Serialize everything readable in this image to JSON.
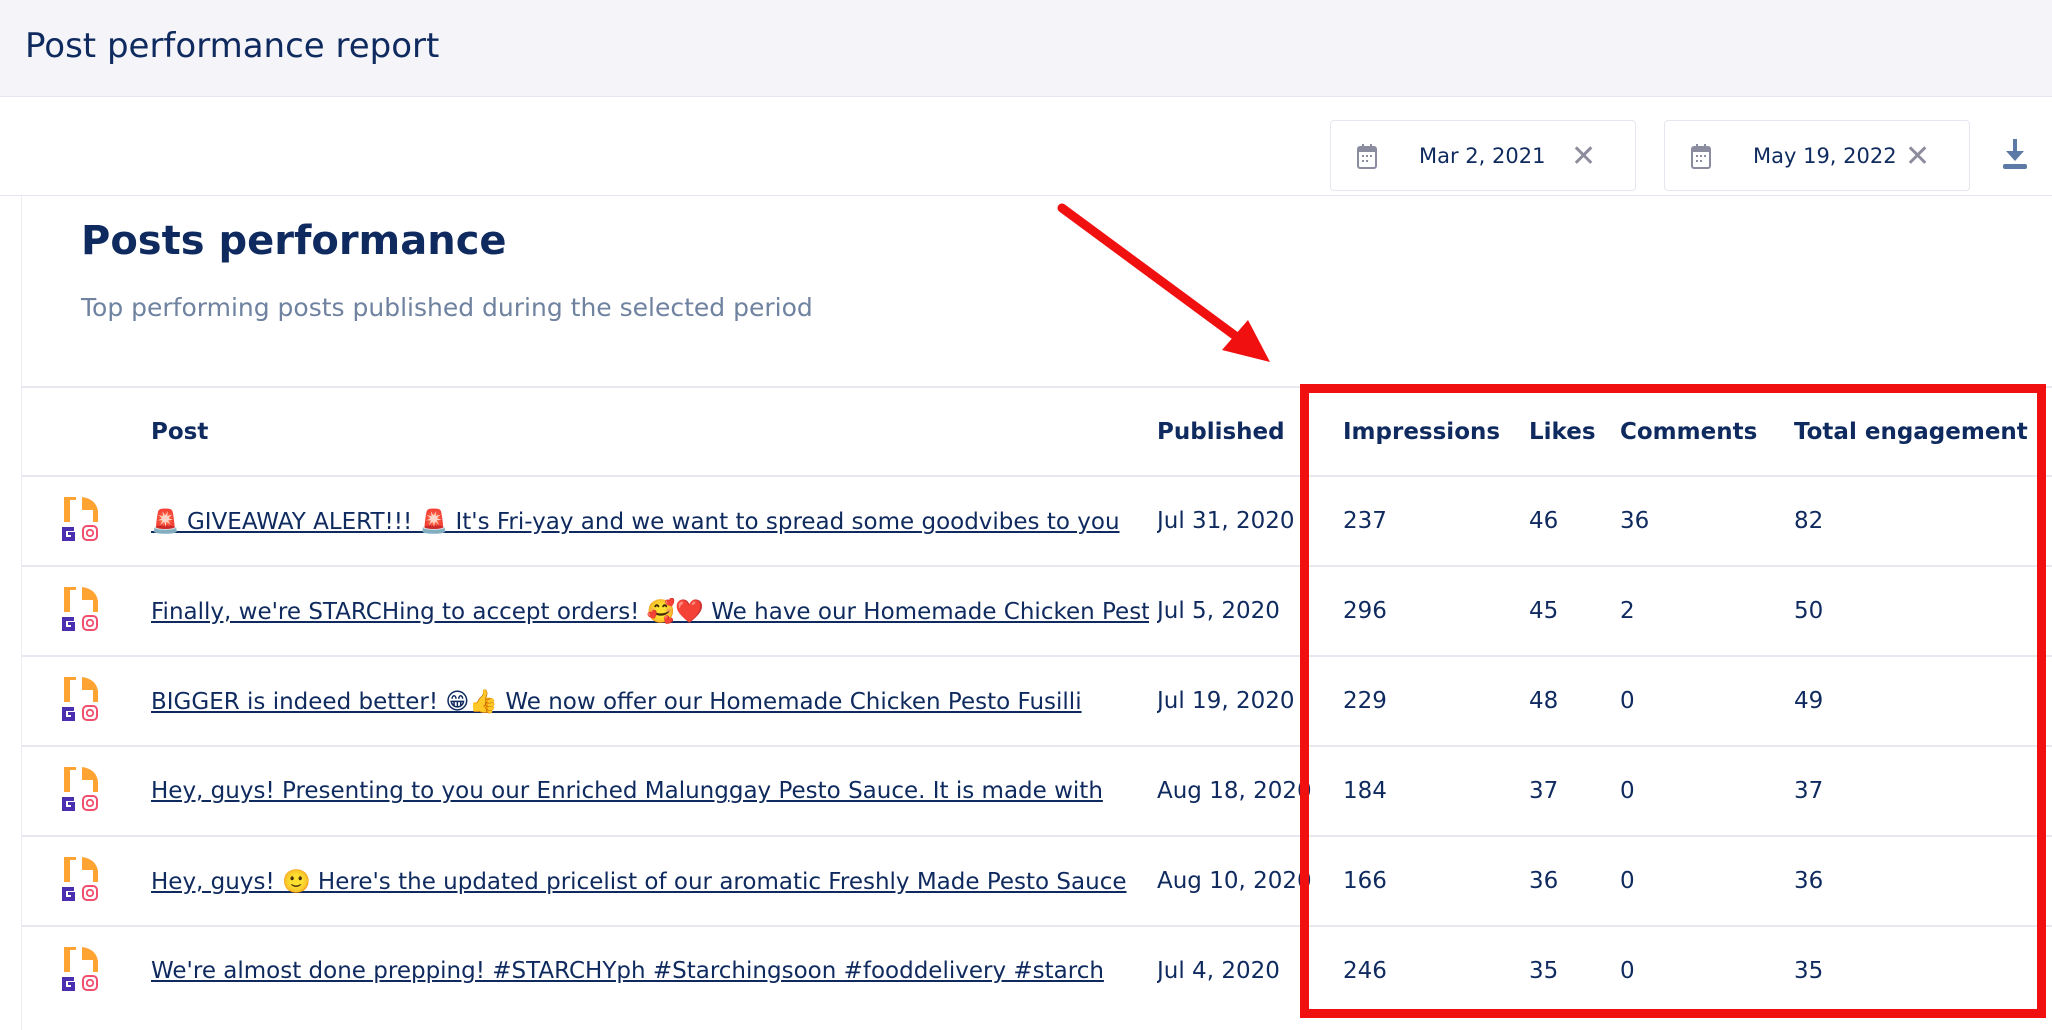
{
  "header": {
    "title": "Post performance report"
  },
  "toolbar": {
    "start_date": "Mar 2, 2021",
    "end_date": "May 19, 2022",
    "icons": {
      "calendar": "calendar-icon",
      "clear": "close-icon",
      "download": "download-icon"
    }
  },
  "card": {
    "title": "Posts performance",
    "subtitle": "Top performing posts published during the selected period"
  },
  "table": {
    "columns": [
      "Post",
      "Published",
      "Impressions",
      "Likes",
      "Comments",
      "Total engagement"
    ],
    "rows": [
      {
        "post": "🚨 GIVEAWAY ALERT!!! 🚨 It's Fri-yay and we want to spread some goodvibes to you",
        "published": "Jul 31, 2020",
        "impressions": "237",
        "likes": "46",
        "comments": "36",
        "total": "82"
      },
      {
        "post": "Finally, we're STARCHing to accept orders! 🥰❤️ We have our Homemade Chicken Pesto",
        "published": "Jul 5, 2020",
        "impressions": "296",
        "likes": "45",
        "comments": "2",
        "total": "50"
      },
      {
        "post": "BIGGER is indeed better! 😁👍 We now offer our Homemade Chicken Pesto Fusilli",
        "published": "Jul 19, 2020",
        "impressions": "229",
        "likes": "48",
        "comments": "0",
        "total": "49"
      },
      {
        "post": "Hey, guys! Presenting to you our Enriched Malunggay Pesto Sauce. It is made with",
        "published": "Aug 18, 2020",
        "impressions": "184",
        "likes": "37",
        "comments": "0",
        "total": "37"
      },
      {
        "post": "Hey, guys! 🙂 Here's the updated pricelist of our aromatic Freshly Made Pesto Sauce",
        "published": "Aug 10, 2020",
        "impressions": "166",
        "likes": "36",
        "comments": "0",
        "total": "36"
      },
      {
        "post": "We're almost done prepping! #STARCHYph #Starchingsoon #fooddelivery #starch",
        "published": "Jul 4, 2020",
        "impressions": "246",
        "likes": "35",
        "comments": "0",
        "total": "35"
      }
    ]
  },
  "colors": {
    "text": "#0f2a5e",
    "highlight": "#f01010",
    "logo_orange": "#ffa333",
    "logo_purple": "#4b2fb0",
    "instagram": "#f0506e"
  }
}
